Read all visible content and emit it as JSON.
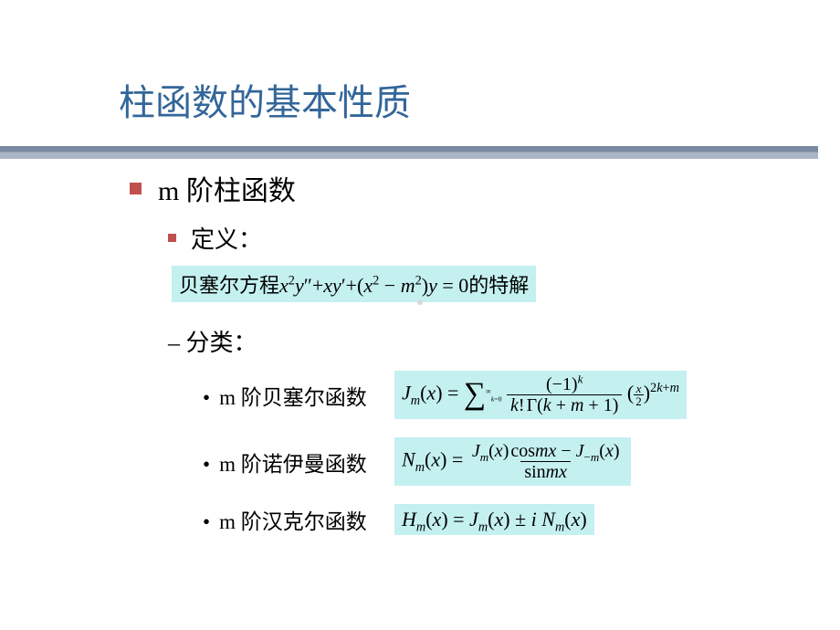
{
  "title": "柱函数的基本性质",
  "level1": "m 阶柱函数",
  "level2_def": "定义：",
  "equation_def_cn_pre": "贝塞尔方程",
  "equation_def_cn_post": "的特解",
  "level2_cat": "– 分类：",
  "cat_items": {
    "bessel": "m 阶贝塞尔函数",
    "neumann": "m 阶诺伊曼函数",
    "hankel": "m 阶汉克尔函数"
  },
  "colors": {
    "title": "#336699",
    "bullet": "#c0504d",
    "highlight_bg": "#c5f0f0",
    "underline_top": "#7a8aa0",
    "underline_bot": "#aab5c5"
  },
  "math": {
    "bessel_eq": "x²y″ + xy′ + (x² − m²)y = 0",
    "Jm_series": "J_m(x) = Σ_{k=0}^{∞} (−1)^k / (k! Γ(k+m+1)) · (x/2)^{2k+m}",
    "Nm": "N_m(x) = (J_m(x) cos mx − J_{−m}(x)) / sin mx",
    "Hm": "H_m(x) = J_m(x) ± i N_m(x)"
  }
}
